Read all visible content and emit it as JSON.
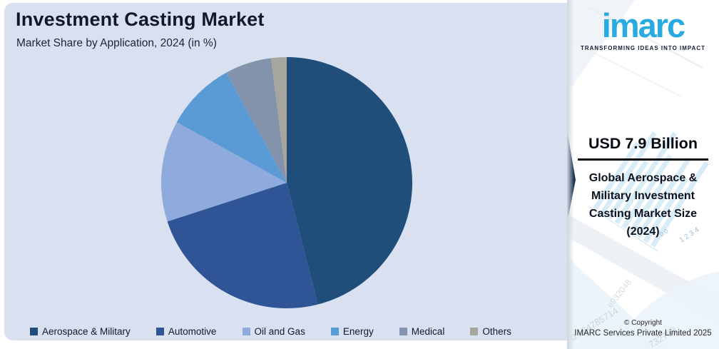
{
  "header": {
    "title": "Investment Casting Market",
    "subtitle": "Market Share by Application, 2024 (in %)"
  },
  "chart_data": {
    "type": "pie",
    "title": "Investment Casting Market",
    "subtitle": "Market Share by Application, 2024 (in %)",
    "unit": "%",
    "start_angle_deg": 0,
    "direction": "clockwise",
    "legend_position": "bottom",
    "values_visible": false,
    "slices": [
      {
        "label": "Aerospace & Military",
        "value": 46,
        "color": "#1F4E7B"
      },
      {
        "label": "Automotive",
        "value": 24,
        "color": "#2F5597"
      },
      {
        "label": "Oil and Gas",
        "value": 13,
        "color": "#8FAADC"
      },
      {
        "label": "Energy",
        "value": 9,
        "color": "#5B9BD5"
      },
      {
        "label": "Medical",
        "value": 6,
        "color": "#8493AC"
      },
      {
        "label": "Others",
        "value": 2,
        "color": "#A6A69F"
      }
    ]
  },
  "brand": {
    "logo_text": "imarc",
    "tagline": "TRANSFORMING IDEAS INTO IMPACT",
    "logo_color": "#29ABE2"
  },
  "highlight": {
    "value": "USD 7.9 Billion",
    "description": "Global Aerospace & Military Investment Casting Market Size (2024)"
  },
  "footer": {
    "copyright_line1": "© Copyright",
    "copyright_line2": "IMARC Services Private Limited 2025"
  },
  "watermarks": {
    "axis_zero": "0.0",
    "axis_ticks": "1  2  3  4",
    "number1": "0.134785714",
    "number2": "732768",
    "number3": "e932048"
  },
  "colors": {
    "chart_bg": "#D9E1F1",
    "panel_bg": "#FFFFFF",
    "accent": "#29ABE2",
    "text_dark": "#10192B",
    "deco_bar": "#D8ECF7",
    "deco_navy_wedge": "#16304F"
  }
}
